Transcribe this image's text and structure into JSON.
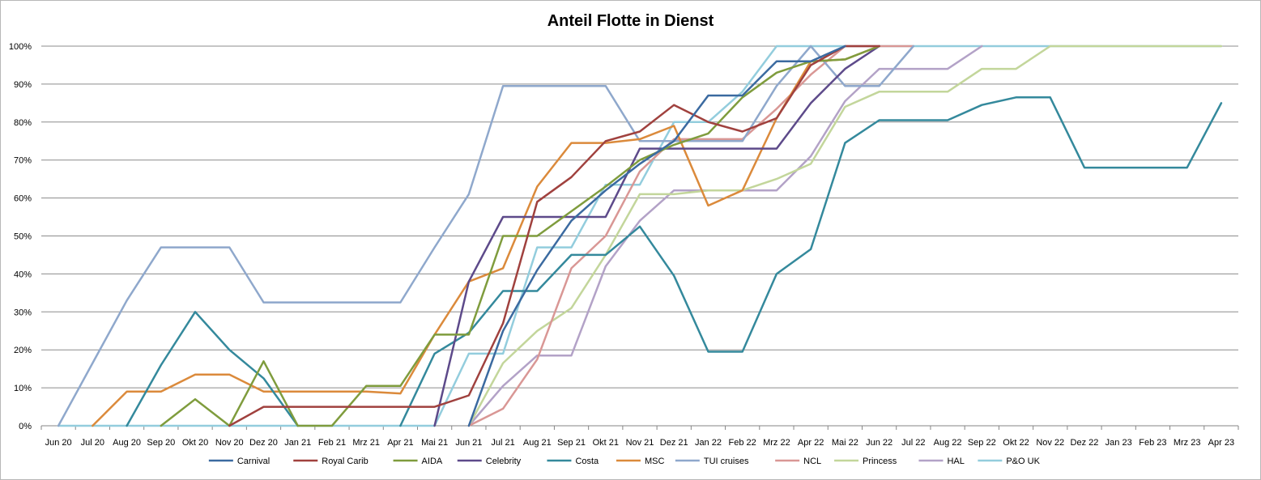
{
  "chart_data": {
    "type": "line",
    "title": "Anteil Flotte in Dienst",
    "xlabel": "",
    "ylabel": "",
    "ylim": [
      0,
      100
    ],
    "y_ticks": [
      "0%",
      "10%",
      "20%",
      "30%",
      "40%",
      "50%",
      "60%",
      "70%",
      "80%",
      "90%",
      "100%"
    ],
    "grid": "horizontal",
    "legend_position": "bottom",
    "categories": [
      "Jun 20",
      "Jul 20",
      "Aug 20",
      "Sep 20",
      "Okt 20",
      "Nov 20",
      "Dez 20",
      "Jan 21",
      "Feb 21",
      "Mrz 21",
      "Apr 21",
      "Mai 21",
      "Jun 21",
      "Jul 21",
      "Aug 21",
      "Sep 21",
      "Okt 21",
      "Nov 21",
      "Dez 21",
      "Jan 22",
      "Feb 22",
      "Mrz 22",
      "Apr 22",
      "Mai 22",
      "Jun 22",
      "Jul 22",
      "Aug 22",
      "Sep 22",
      "Okt 22",
      "Nov 22",
      "Dez 22",
      "Jan 23",
      "Feb 23",
      "Mrz 23",
      "Apr 23"
    ],
    "series": [
      {
        "name": "Carnival",
        "color": "#3b6aa0",
        "values": [
          null,
          null,
          null,
          null,
          null,
          null,
          null,
          null,
          null,
          null,
          null,
          null,
          0,
          25,
          41,
          54,
          62,
          69,
          75,
          87,
          87,
          96,
          96,
          100,
          null,
          null,
          null,
          null,
          null,
          null,
          null,
          null,
          null,
          null,
          null
        ]
      },
      {
        "name": "Royal Carib",
        "color": "#a0413e",
        "values": [
          null,
          null,
          null,
          null,
          null,
          0,
          5,
          5,
          5,
          5,
          5,
          5,
          8,
          27,
          59,
          65.5,
          75,
          77.5,
          84.5,
          80,
          77.5,
          81,
          95,
          100,
          100,
          null,
          null,
          null,
          null,
          null,
          null,
          null,
          null,
          null,
          null
        ]
      },
      {
        "name": "AIDA",
        "color": "#7f9c3d",
        "values": [
          null,
          null,
          null,
          0,
          7,
          0,
          17,
          0,
          0,
          10.5,
          10.5,
          24,
          24,
          50,
          50,
          56.5,
          63,
          70,
          74,
          77,
          86.5,
          93,
          96,
          96.5,
          100,
          null,
          null,
          null,
          null,
          null,
          null,
          null,
          null,
          null,
          null
        ]
      },
      {
        "name": "Celebrity",
        "color": "#5d4a8a",
        "values": [
          null,
          null,
          null,
          null,
          null,
          null,
          null,
          null,
          null,
          null,
          null,
          0,
          38,
          55,
          55,
          55,
          55,
          73,
          73,
          73,
          73,
          73,
          85,
          94,
          100,
          null,
          null,
          null,
          null,
          null,
          null,
          null,
          null,
          null,
          null
        ]
      },
      {
        "name": "Costa",
        "color": "#34899c",
        "values": [
          null,
          null,
          0,
          16,
          30,
          20,
          12.5,
          0,
          null,
          null,
          0,
          19,
          24.5,
          35.5,
          35.5,
          45,
          45,
          52.5,
          39.5,
          19.5,
          19.5,
          40,
          46.5,
          74.5,
          80.5,
          80.5,
          80.5,
          84.5,
          86.5,
          86.5,
          68,
          68,
          68,
          68,
          85
        ]
      },
      {
        "name": "MSC",
        "color": "#db8a3b",
        "values": [
          null,
          0,
          9,
          9,
          13.5,
          13.5,
          9,
          9,
          9,
          9,
          8.5,
          24,
          38,
          41.5,
          63,
          74.5,
          74.5,
          75.5,
          79,
          58,
          62,
          81,
          96,
          96.5,
          100,
          null,
          null,
          null,
          null,
          null,
          null,
          null,
          null,
          null,
          null
        ]
      },
      {
        "name": "TUI cruises",
        "color": "#8fa8cc",
        "values": [
          0,
          16.5,
          33,
          47,
          47,
          47,
          32.5,
          32.5,
          32.5,
          32.5,
          32.5,
          47,
          61,
          89.5,
          89.5,
          89.5,
          89.5,
          75,
          75,
          75,
          75,
          89.5,
          100,
          89.5,
          89.5,
          100,
          null,
          null,
          null,
          null,
          null,
          null,
          null,
          null,
          null
        ]
      },
      {
        "name": "NCL",
        "color": "#d99795",
        "values": [
          null,
          null,
          null,
          null,
          null,
          null,
          null,
          null,
          null,
          null,
          null,
          null,
          0,
          4.5,
          17.5,
          41.5,
          50,
          67,
          75.5,
          75.5,
          75.5,
          83.5,
          92.5,
          100,
          100,
          100,
          null,
          null,
          null,
          null,
          null,
          null,
          null,
          null,
          null
        ]
      },
      {
        "name": "Princess",
        "color": "#c3d69b",
        "values": [
          null,
          null,
          null,
          null,
          null,
          null,
          null,
          null,
          null,
          null,
          null,
          null,
          0,
          16.5,
          25,
          31,
          45,
          61,
          61,
          62,
          62,
          65,
          69,
          84,
          88,
          88,
          88,
          94,
          94,
          100,
          100,
          100,
          100,
          100,
          100
        ]
      },
      {
        "name": "HAL",
        "color": "#b3a2c7",
        "values": [
          null,
          null,
          null,
          null,
          null,
          null,
          null,
          null,
          null,
          null,
          null,
          null,
          0,
          10.5,
          18.5,
          18.5,
          42,
          54,
          62,
          62,
          62,
          62,
          71,
          85.5,
          94,
          94,
          94,
          100,
          null,
          null,
          null,
          null,
          null,
          null,
          null
        ]
      },
      {
        "name": "P&O UK",
        "color": "#93cddd",
        "values": [
          0,
          0,
          0,
          0,
          0,
          0,
          0,
          0,
          0,
          0,
          0,
          0,
          19,
          19,
          47,
          47,
          63.5,
          63.5,
          80,
          80,
          88,
          100,
          100,
          100,
          100,
          100,
          100,
          100,
          100,
          100,
          100,
          100,
          100,
          100,
          100
        ]
      }
    ]
  }
}
